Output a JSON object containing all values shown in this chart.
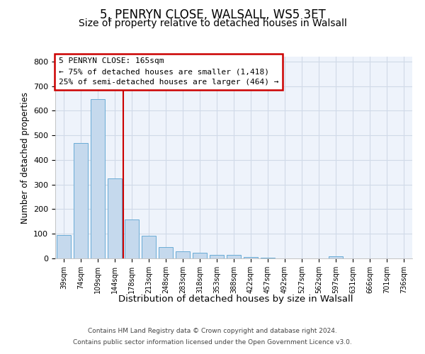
{
  "title1": "5, PENRYN CLOSE, WALSALL, WS5 3ET",
  "title2": "Size of property relative to detached houses in Walsall",
  "xlabel": "Distribution of detached houses by size in Walsall",
  "ylabel": "Number of detached properties",
  "categories": [
    "39sqm",
    "74sqm",
    "109sqm",
    "144sqm",
    "178sqm",
    "213sqm",
    "248sqm",
    "283sqm",
    "318sqm",
    "353sqm",
    "388sqm",
    "422sqm",
    "457sqm",
    "492sqm",
    "527sqm",
    "562sqm",
    "597sqm",
    "631sqm",
    "666sqm",
    "701sqm",
    "736sqm"
  ],
  "values": [
    95,
    470,
    648,
    325,
    158,
    93,
    46,
    28,
    22,
    15,
    14,
    6,
    2,
    0,
    0,
    0,
    8,
    0,
    0,
    0,
    0
  ],
  "bar_color": "#c5d9ed",
  "bar_edge_color": "#6aacd6",
  "vline_color": "#cc0000",
  "annotation_text": "5 PENRYN CLOSE: 165sqm\n← 75% of detached houses are smaller (1,418)\n25% of semi-detached houses are larger (464) →",
  "annotation_box_color": "#cc0000",
  "ylim_max": 820,
  "yticks": [
    0,
    100,
    200,
    300,
    400,
    500,
    600,
    700,
    800
  ],
  "bg_color": "#eef3fb",
  "grid_color": "#d0dae8",
  "footer_line1": "Contains HM Land Registry data © Crown copyright and database right 2024.",
  "footer_line2": "Contains public sector information licensed under the Open Government Licence v3.0."
}
